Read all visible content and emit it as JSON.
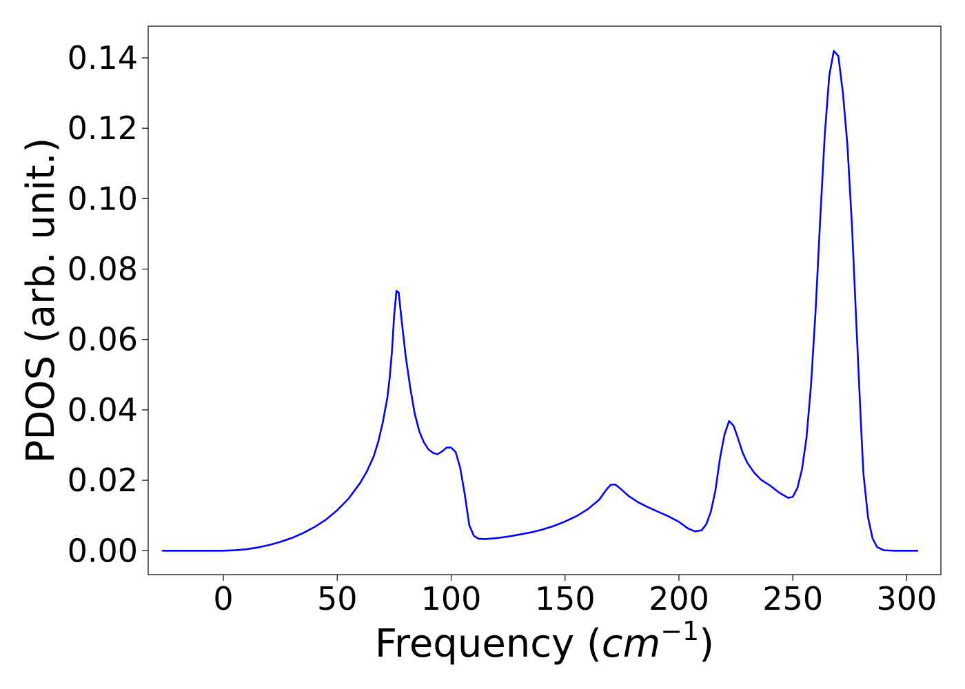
{
  "chart_data": {
    "type": "line",
    "xlabel_text": "Frequency (",
    "xlabel_unit_base": "cm",
    "xlabel_unit_exp": "−1",
    "xlabel_close": ")",
    "ylabel": "PDOS (arb. unit.)",
    "xlim": [
      -33,
      315
    ],
    "ylim": [
      -0.0068,
      0.149
    ],
    "xticks": [
      0,
      50,
      100,
      150,
      200,
      250,
      300
    ],
    "xtick_labels": [
      "0",
      "50",
      "100",
      "150",
      "200",
      "250",
      "300"
    ],
    "yticks": [
      0.0,
      0.02,
      0.04,
      0.06,
      0.08,
      0.1,
      0.12,
      0.14
    ],
    "ytick_labels": [
      "0.00",
      "0.02",
      "0.04",
      "0.06",
      "0.08",
      "0.10",
      "0.12",
      "0.14"
    ],
    "grid": false,
    "series": [
      {
        "color": "#0000ff",
        "points": [
          [
            -27,
            0.0
          ],
          [
            -15,
            0.0
          ],
          [
            0,
            0.0
          ],
          [
            5,
            0.0001
          ],
          [
            10,
            0.0004
          ],
          [
            15,
            0.0009
          ],
          [
            20,
            0.0016
          ],
          [
            25,
            0.0025
          ],
          [
            30,
            0.0036
          ],
          [
            35,
            0.005
          ],
          [
            40,
            0.0067
          ],
          [
            45,
            0.0088
          ],
          [
            50,
            0.0115
          ],
          [
            55,
            0.0148
          ],
          [
            60,
            0.0192
          ],
          [
            63,
            0.0225
          ],
          [
            66,
            0.0268
          ],
          [
            68,
            0.031
          ],
          [
            70,
            0.0365
          ],
          [
            72,
            0.0435
          ],
          [
            73,
            0.049
          ],
          [
            74,
            0.0565
          ],
          [
            75,
            0.067
          ],
          [
            76,
            0.0738
          ],
          [
            77,
            0.0733
          ],
          [
            78,
            0.067
          ],
          [
            80,
            0.0555
          ],
          [
            82,
            0.0465
          ],
          [
            84,
            0.039
          ],
          [
            86,
            0.034
          ],
          [
            88,
            0.0308
          ],
          [
            90,
            0.0288
          ],
          [
            92,
            0.0278
          ],
          [
            94,
            0.0274
          ],
          [
            96,
            0.0282
          ],
          [
            98,
            0.0293
          ],
          [
            100,
            0.0293
          ],
          [
            102,
            0.028
          ],
          [
            104,
            0.0235
          ],
          [
            106,
            0.016
          ],
          [
            107,
            0.0115
          ],
          [
            108,
            0.0072
          ],
          [
            110,
            0.0042
          ],
          [
            112,
            0.0034
          ],
          [
            115,
            0.0033
          ],
          [
            120,
            0.0036
          ],
          [
            125,
            0.004
          ],
          [
            130,
            0.0046
          ],
          [
            135,
            0.0052
          ],
          [
            140,
            0.006
          ],
          [
            145,
            0.007
          ],
          [
            150,
            0.0083
          ],
          [
            155,
            0.0098
          ],
          [
            160,
            0.0118
          ],
          [
            165,
            0.0145
          ],
          [
            168,
            0.0172
          ],
          [
            170,
            0.0187
          ],
          [
            172,
            0.0188
          ],
          [
            174,
            0.0178
          ],
          [
            178,
            0.0155
          ],
          [
            182,
            0.0138
          ],
          [
            186,
            0.0125
          ],
          [
            190,
            0.0113
          ],
          [
            195,
            0.0099
          ],
          [
            200,
            0.0082
          ],
          [
            204,
            0.0063
          ],
          [
            207,
            0.0055
          ],
          [
            210,
            0.0058
          ],
          [
            212,
            0.0075
          ],
          [
            214,
            0.011
          ],
          [
            216,
            0.017
          ],
          [
            218,
            0.0262
          ],
          [
            220,
            0.033
          ],
          [
            222,
            0.0368
          ],
          [
            224,
            0.0355
          ],
          [
            226,
            0.0318
          ],
          [
            228,
            0.0278
          ],
          [
            230,
            0.025
          ],
          [
            233,
            0.0222
          ],
          [
            236,
            0.0202
          ],
          [
            240,
            0.0185
          ],
          [
            244,
            0.0165
          ],
          [
            248,
            0.015
          ],
          [
            250,
            0.0153
          ],
          [
            252,
            0.0178
          ],
          [
            254,
            0.023
          ],
          [
            256,
            0.032
          ],
          [
            258,
            0.047
          ],
          [
            260,
            0.068
          ],
          [
            262,
            0.094
          ],
          [
            264,
            0.118
          ],
          [
            266,
            0.135
          ],
          [
            268,
            0.142
          ],
          [
            270,
            0.1405
          ],
          [
            272,
            0.13
          ],
          [
            274,
            0.115
          ],
          [
            276,
            0.092
          ],
          [
            278,
            0.063
          ],
          [
            280,
            0.035
          ],
          [
            281,
            0.022
          ],
          [
            283,
            0.0095
          ],
          [
            285,
            0.0035
          ],
          [
            287,
            0.001
          ],
          [
            290,
            0.0001
          ],
          [
            295,
            0.0
          ],
          [
            305,
            0.0
          ]
        ]
      }
    ]
  }
}
